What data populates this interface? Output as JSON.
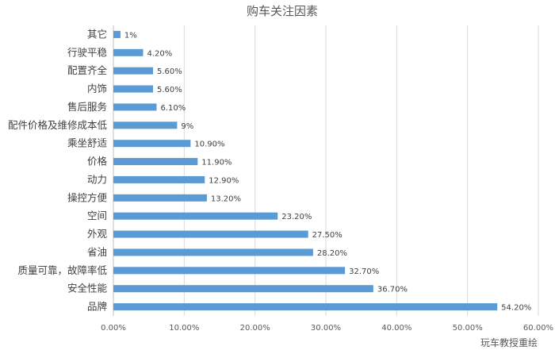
{
  "chart_data": {
    "type": "bar",
    "orientation": "horizontal",
    "title": "购车关注因素",
    "categories": [
      "其它",
      "行驶平稳",
      "配置齐全",
      "内饰",
      "售后服务",
      "配件价格及维修成本低",
      "乘坐舒适",
      "价格",
      "动力",
      "操控方便",
      "空间",
      "外观",
      "省油",
      "质量可靠，故障率低",
      "安全性能",
      "品牌"
    ],
    "values": [
      1,
      4.2,
      5.6,
      5.6,
      6.1,
      9,
      10.9,
      11.9,
      12.9,
      13.2,
      23.2,
      27.5,
      28.2,
      32.7,
      36.7,
      54.2
    ],
    "data_labels": [
      "1%",
      "4.20%",
      "5.60%",
      "5.60%",
      "6.10%",
      "9%",
      "10.90%",
      "11.90%",
      "12.90%",
      "13.20%",
      "23.20%",
      "27.50%",
      "28.20%",
      "32.70%",
      "36.70%",
      "54.20%"
    ],
    "xlim": [
      0,
      60
    ],
    "xticks": [
      0,
      10,
      20,
      30,
      40,
      50,
      60
    ],
    "xtick_labels": [
      "0.00%",
      "10.00%",
      "20.00%",
      "30.00%",
      "40.00%",
      "50.00%",
      "60.00%"
    ],
    "grid": true,
    "bar_color": "#5b9bd5",
    "grid_color": "#d9d9d9",
    "annotation": "玩车教授重绘"
  }
}
